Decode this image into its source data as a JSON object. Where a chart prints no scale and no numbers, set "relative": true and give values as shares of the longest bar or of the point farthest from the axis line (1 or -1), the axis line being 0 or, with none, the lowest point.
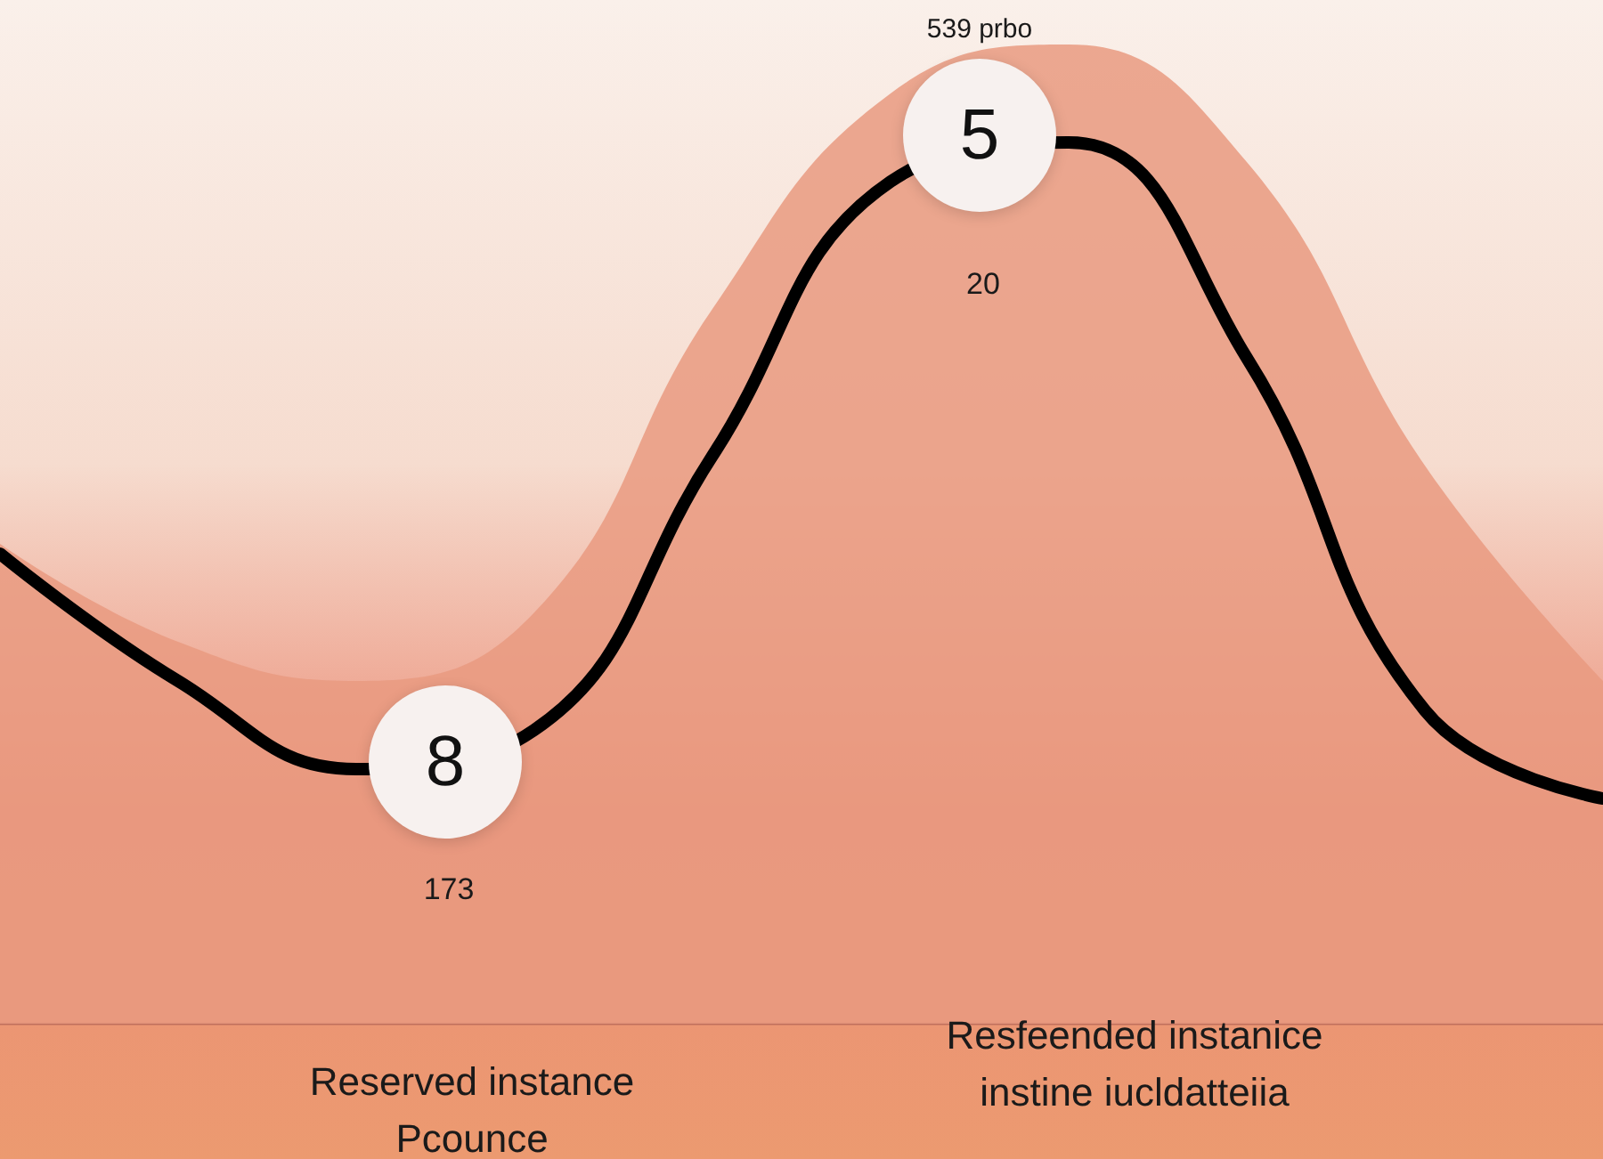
{
  "chart_data": {
    "type": "line",
    "relative": true,
    "categories": [
      null,
      null,
      null,
      null,
      null,
      null,
      null,
      null,
      null,
      null
    ],
    "series": [
      {
        "type": "area",
        "color": "#e99a80",
        "values": [
          0.49,
          0.39,
          0.35,
          0.42,
          0.73,
          0.95,
          1,
          0.88,
          0.57,
          0.35
        ]
      },
      {
        "color": "#000000",
        "values": [
          0.48,
          0.35,
          0.26,
          0.3,
          0.58,
          0.86,
          0.9,
          0.68,
          0.32,
          0.23
        ]
      }
    ],
    "annotations": [
      "539 prbo",
      "5",
      "20",
      "8",
      "173",
      "Reserved instance\nPcounce",
      "Resfeended instanice\ninstine iucldatteiia"
    ],
    "marker": "none",
    "line_style": "solid"
  }
}
